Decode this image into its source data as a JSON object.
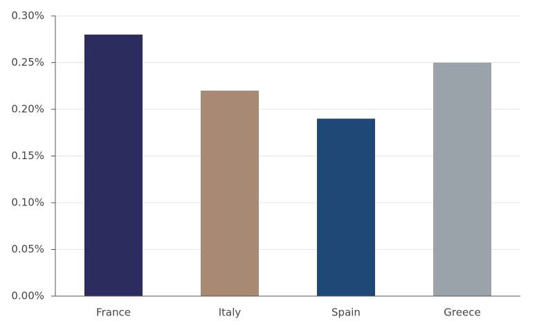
{
  "chart_data": {
    "type": "bar",
    "categories": [
      "France",
      "Italy",
      "Spain",
      "Greece"
    ],
    "values": [
      0.28,
      0.22,
      0.19,
      0.25
    ],
    "colors": [
      "#2d2c5e",
      "#a88a74",
      "#1f4877",
      "#9ba3aa"
    ],
    "ylim": [
      0,
      0.3
    ],
    "yticks": [
      {
        "value": 0,
        "label": "0.00%"
      },
      {
        "value": 0.05,
        "label": "0.05%"
      },
      {
        "value": 0.1,
        "label": "0.10%"
      },
      {
        "value": 0.15,
        "label": "0.15%"
      },
      {
        "value": 0.2,
        "label": "0.20%"
      },
      {
        "value": 0.25,
        "label": "0.25%"
      },
      {
        "value": 0.3,
        "label": "0.30%"
      }
    ],
    "grid": true
  }
}
